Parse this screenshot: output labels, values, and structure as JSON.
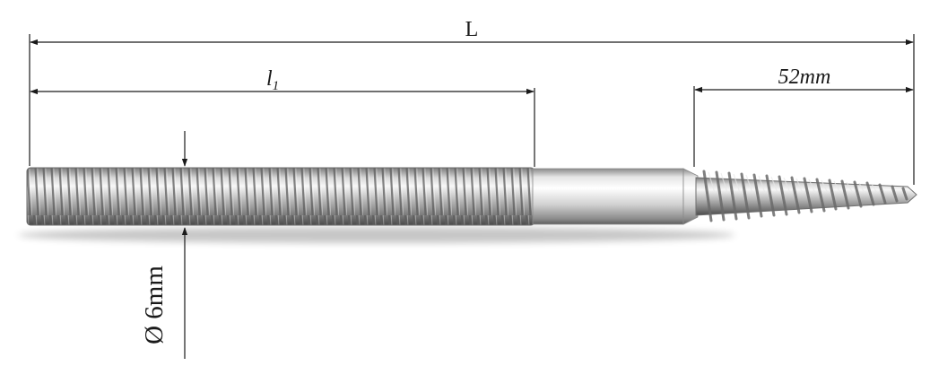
{
  "dimensions": {
    "overall_length_label": "L",
    "machine_thread_length_label": "l",
    "machine_thread_length_subscript": "1",
    "wood_thread_length_label": "52mm",
    "diameter_label": "Ø 6mm"
  }
}
